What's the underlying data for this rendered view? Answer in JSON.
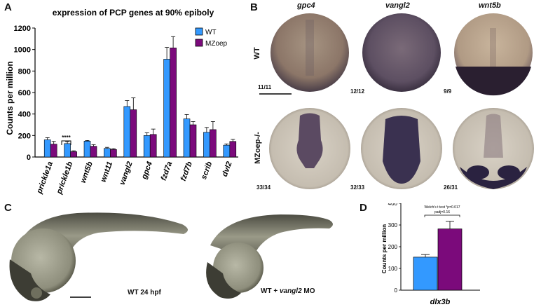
{
  "panels": {
    "a": "A",
    "b": "B",
    "c": "C",
    "d": "D"
  },
  "colors": {
    "wt": "#3399ff",
    "mzoep": "#7b0a7b",
    "embryo_light": "#c9c1b2",
    "embryo_dark": "#46405e"
  },
  "chart_data": [
    {
      "type": "bar",
      "title": "expression of PCP genes at 90% epiboly",
      "xlabel": "",
      "ylabel": "Counts per million",
      "ylim": [
        0,
        1200
      ],
      "yticks": [
        "0",
        "200",
        "400",
        "600",
        "800",
        "1000",
        "1200"
      ],
      "categories": [
        "prickle1a",
        "prickle1b",
        "wnt5b",
        "wnt11",
        "vangl2",
        "gpc4",
        "fzd7a",
        "fzd7b",
        "scrib",
        "dvl2"
      ],
      "series": [
        {
          "name": "WT",
          "values": [
            160,
            125,
            148,
            80,
            470,
            200,
            910,
            355,
            230,
            110
          ],
          "errors": [
            20,
            18,
            6,
            10,
            55,
            25,
            110,
            40,
            45,
            12
          ]
        },
        {
          "name": "MZoep",
          "values": [
            120,
            50,
            100,
            70,
            440,
            210,
            1015,
            300,
            255,
            145
          ],
          "errors": [
            25,
            8,
            15,
            8,
            110,
            50,
            105,
            30,
            75,
            20
          ]
        }
      ],
      "legend": "top-right",
      "annotation": "****"
    },
    {
      "type": "bar",
      "title": "",
      "xlabel": "dlx3b",
      "ylabel": "Counts per million",
      "ylim": [
        0,
        400
      ],
      "yticks": [
        "0",
        "100",
        "200",
        "300",
        "400"
      ],
      "categories": [
        "WT",
        "MZoep"
      ],
      "values": [
        152,
        282
      ],
      "errors": [
        12,
        35
      ],
      "annotation_line1": "Welch's t test *p=0.017",
      "annotation_line2": "padj=0.16"
    }
  ],
  "panel_b": {
    "columns": [
      "gpc4",
      "vangl2",
      "wnt5b"
    ],
    "rows": [
      "WT",
      "MZoep-/-"
    ],
    "counts_wt": [
      "11/11",
      "12/12",
      "9/9"
    ],
    "counts_mz": [
      "33/34",
      "32/33",
      "26/31"
    ]
  },
  "panel_c": {
    "caption_wt": "WT 24 hpf",
    "caption_mo_prefix": "WT + ",
    "caption_mo_gene": "vangl2",
    "caption_mo_suffix": " MO"
  }
}
